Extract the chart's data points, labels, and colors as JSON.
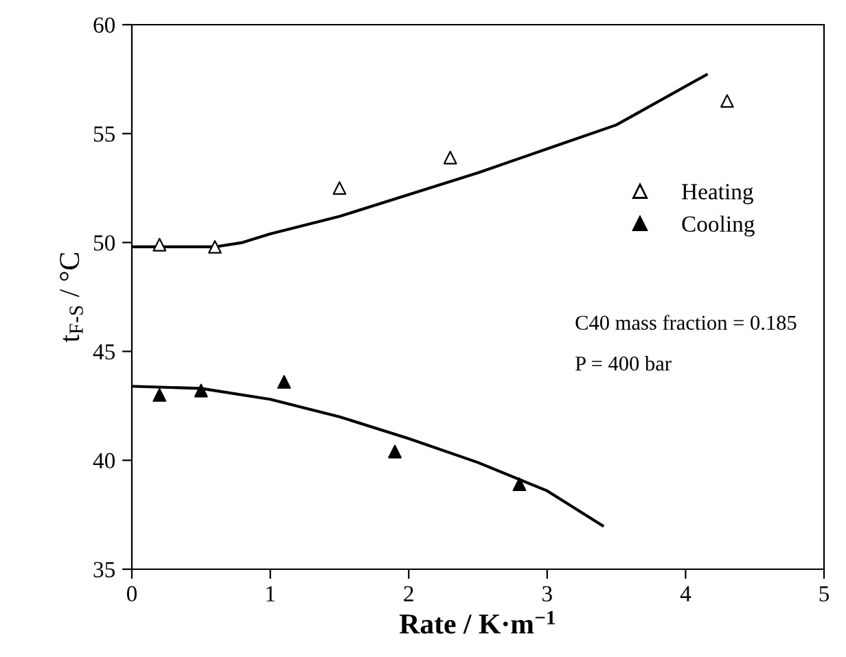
{
  "chart_data": {
    "type": "scatter",
    "xlabel": "Rate / K·m$^{−1}$",
    "ylabel": "t$_{F-S}$ / °C",
    "xlim": [
      0,
      5
    ],
    "ylim": [
      35,
      60
    ],
    "xticks": [
      0,
      1,
      2,
      3,
      4,
      5
    ],
    "yticks": [
      35,
      40,
      45,
      50,
      55,
      60
    ],
    "grid": false,
    "legend": "right",
    "series": [
      {
        "name": "Heating",
        "marker": "triangle",
        "color": "#ffffff",
        "x": [
          0.2,
          0.6,
          1.5,
          2.3,
          4.3
        ],
        "values": [
          49.9,
          49.8,
          52.5,
          53.9,
          56.5
        ]
      },
      {
        "name": "Cooling",
        "marker": "triangle",
        "color": "#000000",
        "x": [
          0.2,
          0.5,
          1.1,
          1.9,
          2.8
        ],
        "values": [
          43.0,
          43.2,
          43.6,
          40.4,
          38.9
        ]
      },
      {
        "type": "line",
        "color": "#000000",
        "x": [
          0,
          0.3,
          0.6,
          0.8,
          1,
          1.5,
          2,
          2.5,
          3,
          3.5,
          4.15
        ],
        "values": [
          49.8,
          49.8,
          49.8,
          50.0,
          50.4,
          51.2,
          52.2,
          53.2,
          54.3,
          55.4,
          57.7
        ]
      },
      {
        "type": "line",
        "color": "#000000",
        "x": [
          0,
          0.5,
          1,
          1.5,
          2,
          2.5,
          3,
          3.4
        ],
        "values": [
          43.4,
          43.3,
          42.8,
          42.0,
          41.0,
          39.9,
          38.6,
          37.0
        ]
      }
    ],
    "annotations": [
      "C40 mass fraction = 0.185",
      "P = 400 bar"
    ]
  }
}
